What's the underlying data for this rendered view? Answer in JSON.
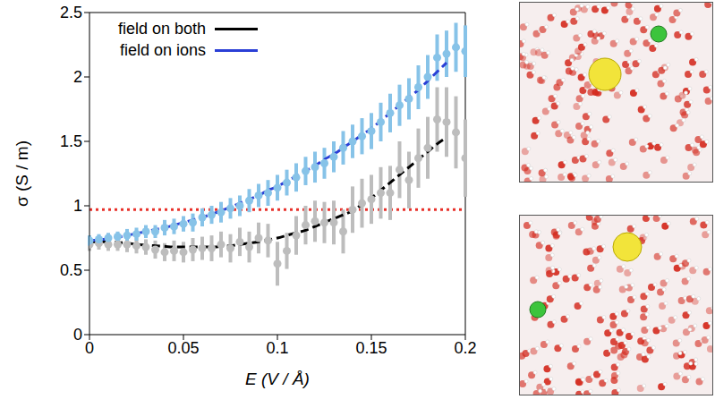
{
  "chart_data": {
    "type": "scatter",
    "x_label": "E (V / Å)",
    "y_label": "σ (S / m)",
    "xlim": [
      0,
      0.2
    ],
    "xticks": [
      0,
      0.05,
      0.1,
      0.15,
      0.2
    ],
    "ylim": [
      0,
      2.5
    ],
    "yticks": [
      0,
      0.5,
      1,
      1.5,
      2,
      2.5
    ],
    "legend": "upper left",
    "x": [
      0,
      0.005,
      0.01,
      0.015,
      0.02,
      0.025,
      0.03,
      0.035,
      0.04,
      0.045,
      0.05,
      0.055,
      0.06,
      0.065,
      0.07,
      0.075,
      0.08,
      0.085,
      0.09,
      0.095,
      0.1,
      0.105,
      0.11,
      0.115,
      0.12,
      0.125,
      0.13,
      0.135,
      0.14,
      0.145,
      0.15,
      0.155,
      0.16,
      0.165,
      0.17,
      0.175,
      0.18,
      0.185,
      0.19,
      0.195,
      0.2
    ],
    "series": [
      {
        "name": "field on both",
        "color": "#000000",
        "marker_color": "#bdbdbd",
        "marker": "circle",
        "line_style": "dashed",
        "values": [
          0.7,
          0.71,
          0.7,
          0.7,
          0.7,
          0.69,
          0.68,
          0.66,
          0.64,
          0.65,
          0.64,
          0.66,
          0.67,
          0.67,
          0.7,
          0.67,
          0.72,
          0.68,
          0.75,
          0.73,
          0.55,
          0.65,
          0.77,
          0.85,
          0.88,
          0.87,
          0.87,
          0.8,
          0.97,
          1.02,
          1.05,
          1.1,
          1.1,
          1.28,
          1.2,
          1.37,
          1.45,
          1.67,
          1.65,
          1.57,
          1.37
        ],
        "errors": [
          0.05,
          0.05,
          0.05,
          0.05,
          0.06,
          0.06,
          0.06,
          0.07,
          0.07,
          0.08,
          0.08,
          0.09,
          0.09,
          0.1,
          0.1,
          0.11,
          0.11,
          0.12,
          0.12,
          0.13,
          0.17,
          0.14,
          0.15,
          0.15,
          0.16,
          0.16,
          0.17,
          0.17,
          0.18,
          0.19,
          0.19,
          0.2,
          0.21,
          0.22,
          0.22,
          0.23,
          0.24,
          0.25,
          0.27,
          0.28,
          0.3
        ],
        "fit": [
          0.72,
          0.72,
          0.72,
          0.715,
          0.71,
          0.7,
          0.695,
          0.69,
          0.685,
          0.68,
          0.68,
          0.68,
          0.68,
          0.68,
          0.685,
          0.69,
          0.7,
          0.71,
          0.72,
          0.735,
          0.75,
          0.77,
          0.79,
          0.81,
          0.84,
          0.87,
          0.9,
          0.93,
          0.96,
          1.01,
          1.06,
          1.12,
          1.18,
          1.24,
          1.3,
          1.36,
          1.42,
          1.48,
          1.53,
          null,
          null
        ]
      },
      {
        "name": "field on ions",
        "color": "#2a3fd6",
        "marker_color": "#87c3e8",
        "marker": "circle",
        "line_style": "dashed",
        "values": [
          0.73,
          0.74,
          0.75,
          0.76,
          0.77,
          0.78,
          0.8,
          0.8,
          0.83,
          0.84,
          0.86,
          0.87,
          0.91,
          0.93,
          0.95,
          0.98,
          1.0,
          1.04,
          1.08,
          1.1,
          1.14,
          1.18,
          1.22,
          1.27,
          1.3,
          1.33,
          1.38,
          1.45,
          1.5,
          1.54,
          1.58,
          1.65,
          1.72,
          1.78,
          1.83,
          1.92,
          2.0,
          2.15,
          2.18,
          2.23,
          2.2
        ],
        "errors": [
          0.04,
          0.04,
          0.04,
          0.04,
          0.05,
          0.05,
          0.05,
          0.05,
          0.06,
          0.06,
          0.06,
          0.07,
          0.07,
          0.07,
          0.08,
          0.08,
          0.08,
          0.09,
          0.09,
          0.1,
          0.1,
          0.1,
          0.11,
          0.11,
          0.12,
          0.12,
          0.12,
          0.13,
          0.13,
          0.14,
          0.14,
          0.15,
          0.15,
          0.16,
          0.16,
          0.17,
          0.17,
          0.18,
          0.18,
          0.19,
          0.2
        ],
        "fit": [
          0.73,
          0.735,
          0.745,
          0.755,
          0.77,
          0.785,
          0.8,
          0.815,
          0.83,
          0.85,
          0.87,
          0.89,
          0.91,
          0.935,
          0.96,
          0.99,
          1.02,
          1.05,
          1.08,
          1.12,
          1.15,
          1.19,
          1.23,
          1.27,
          1.31,
          1.36,
          1.4,
          1.45,
          1.5,
          1.55,
          1.6,
          1.66,
          1.72,
          1.78,
          1.84,
          1.9,
          1.97,
          2.04,
          2.11,
          null,
          null
        ]
      }
    ],
    "hline": {
      "y": 0.97,
      "color": "#e8312a",
      "line_style": "dotted"
    }
  }
}
